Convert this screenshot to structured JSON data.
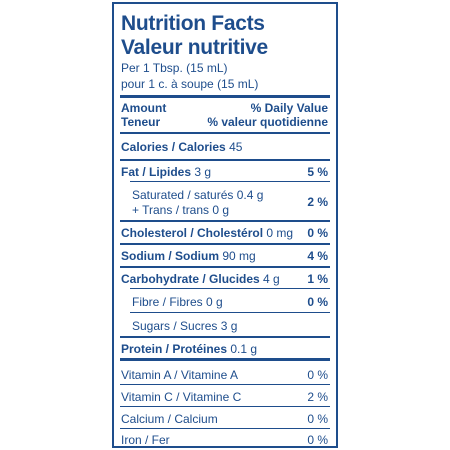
{
  "header": {
    "title_en": "Nutrition Facts",
    "title_fr": "Valeur nutritive",
    "serving_en": "Per 1 Tbsp. (15 mL)",
    "serving_fr": "pour 1 c. à soupe (15 mL)"
  },
  "columns": {
    "amount_en": "Amount",
    "amount_fr": "Teneur",
    "dv_en": "% Daily Value",
    "dv_fr": "% valeur quotidienne"
  },
  "calories": {
    "label": "Calories / Calories",
    "value": "45"
  },
  "nutrients": {
    "fat": {
      "label": "Fat / Lipides",
      "amount": "3 g",
      "dv": "5 %"
    },
    "saturated": {
      "label": "Saturated / saturés",
      "amount": "0.4 g",
      "dv": "2 %"
    },
    "trans": {
      "label": "+ Trans / trans",
      "amount": "0 g"
    },
    "cholesterol": {
      "label": "Cholesterol / Cholestérol",
      "amount": "0 mg",
      "dv": "0 %"
    },
    "sodium": {
      "label": "Sodium / Sodium",
      "amount": "90 mg",
      "dv": "4 %"
    },
    "carbohydrate": {
      "label": "Carbohydrate / Glucides",
      "amount": "4 g",
      "dv": "1 %"
    },
    "fibre": {
      "label": "Fibre / Fibres",
      "amount": "0 g",
      "dv": "0 %"
    },
    "sugars": {
      "label": "Sugars / Sucres",
      "amount": "3 g"
    },
    "protein": {
      "label": "Protein / Protéines",
      "amount": "0.1 g"
    }
  },
  "vitamins": [
    {
      "label": "Vitamin A / Vitamine A",
      "dv": "0 %"
    },
    {
      "label": "Vitamin C / Vitamine C",
      "dv": "2 %"
    },
    {
      "label": "Calcium / Calcium",
      "dv": "0 %"
    },
    {
      "label": "Iron / Fer",
      "dv": "0 %"
    }
  ],
  "colors": {
    "ink": "#1e4d8c",
    "background": "#ffffff"
  }
}
